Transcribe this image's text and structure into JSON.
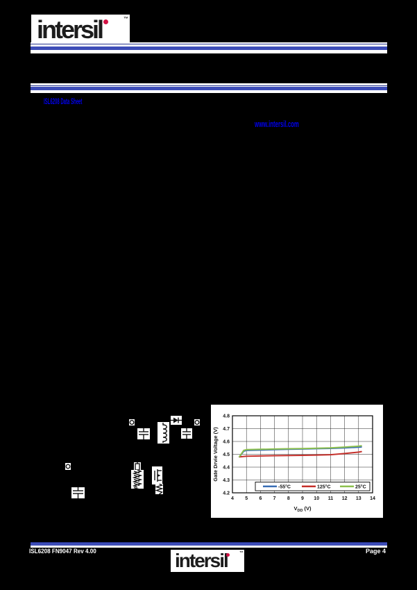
{
  "page": {
    "background": "#000000",
    "accent_blue": "#3d4db8",
    "accent_blue_dark": "#27348f",
    "link_color": "#0000ee",
    "logo_dot_color": "#d31245"
  },
  "header": {
    "logo_text": "intersil",
    "logo_tm": "™",
    "link": "ISL6208 Data Sheet"
  },
  "body_links": {
    "reference_link": "www.intersil.com"
  },
  "schematic": {
    "description": "typical-application-circuit-fragment",
    "components": [
      "junction-node",
      "capacitor",
      "inductor",
      "diode",
      "capacitor",
      "junction-node",
      "junction-node",
      "resistor",
      "resistor-network",
      "mosfet",
      "resistor",
      "capacitor"
    ]
  },
  "chart_data": {
    "type": "line",
    "title": "",
    "ylabel": "Gate Drvie Voltage (V)",
    "xlabel_main": "V",
    "xlabel_sub": "DD",
    "xlabel_unit": "(V)",
    "xlim": [
      4,
      14
    ],
    "ylim": [
      4.2,
      4.8
    ],
    "xticks": [
      4,
      5,
      6,
      7,
      8,
      9,
      10,
      11,
      12,
      13,
      14
    ],
    "yticks": [
      4.2,
      4.3,
      4.4,
      4.5,
      4.6,
      4.7,
      4.8
    ],
    "grid": true,
    "legend_position": "inside-bottom-center",
    "series": [
      {
        "name": "-55°C",
        "color": "#3a6eb5",
        "points": [
          [
            4.5,
            4.48
          ],
          [
            4.8,
            4.524
          ],
          [
            5,
            4.53
          ],
          [
            6,
            4.533
          ],
          [
            7,
            4.536
          ],
          [
            8,
            4.539
          ],
          [
            9,
            4.541
          ],
          [
            10,
            4.544
          ],
          [
            11,
            4.546
          ],
          [
            12,
            4.55
          ],
          [
            13,
            4.555
          ],
          [
            13.2,
            4.557
          ]
        ]
      },
      {
        "name": "125°C",
        "color": "#c5302b",
        "points": [
          [
            4.5,
            4.48
          ],
          [
            5,
            4.485
          ],
          [
            6,
            4.487
          ],
          [
            7,
            4.489
          ],
          [
            8,
            4.49
          ],
          [
            9,
            4.492
          ],
          [
            10,
            4.494
          ],
          [
            11,
            4.497
          ],
          [
            12,
            4.506
          ],
          [
            13,
            4.517
          ],
          [
            13.2,
            4.521
          ]
        ]
      },
      {
        "name": "25°C",
        "color": "#8dc04e",
        "points": [
          [
            4.5,
            4.482
          ],
          [
            4.8,
            4.53
          ],
          [
            5,
            4.536
          ],
          [
            6,
            4.539
          ],
          [
            7,
            4.541
          ],
          [
            8,
            4.543
          ],
          [
            9,
            4.545
          ],
          [
            10,
            4.547
          ],
          [
            11,
            4.55
          ],
          [
            12,
            4.556
          ],
          [
            13,
            4.563
          ],
          [
            13.2,
            4.566
          ]
        ]
      }
    ]
  },
  "footer": {
    "left": "ISL6208 FN9047 Rev 4.00",
    "right": "Page 4",
    "logo_text": "intersil",
    "logo_tm": "™"
  }
}
